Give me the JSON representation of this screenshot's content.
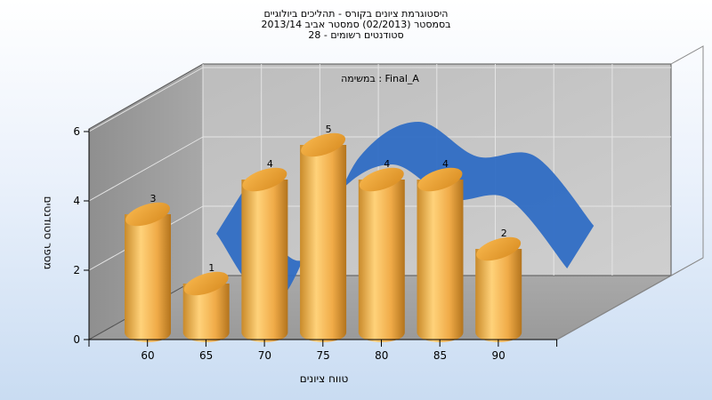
{
  "chart_data": {
    "type": "bar",
    "title_lines": [
      "היסטוגרמת ציונים בקורס - תהליכים ביולוגיים",
      "בסמסטר (02/2013) סמסטר אביב 2013/14",
      "סטודנטים רשומים - 28"
    ],
    "annotation": "במשימה : Final_A",
    "xlabel": "טווח ציונים",
    "ylabel": "מספר סטודנטים",
    "categories": [
      "60",
      "65",
      "70",
      "75",
      "80",
      "85",
      "90"
    ],
    "values": [
      3,
      1,
      4,
      5,
      4,
      4,
      2
    ],
    "data_labels": [
      "3",
      "1",
      "4",
      "5",
      "4",
      "4",
      "2"
    ],
    "yticks": [
      "0",
      "2",
      "4",
      "6"
    ],
    "ylim": [
      0,
      6
    ],
    "grid": true,
    "style": "3d-cylinder",
    "bar_color": "#e9a545",
    "curve_color": "#2f6dc4"
  }
}
